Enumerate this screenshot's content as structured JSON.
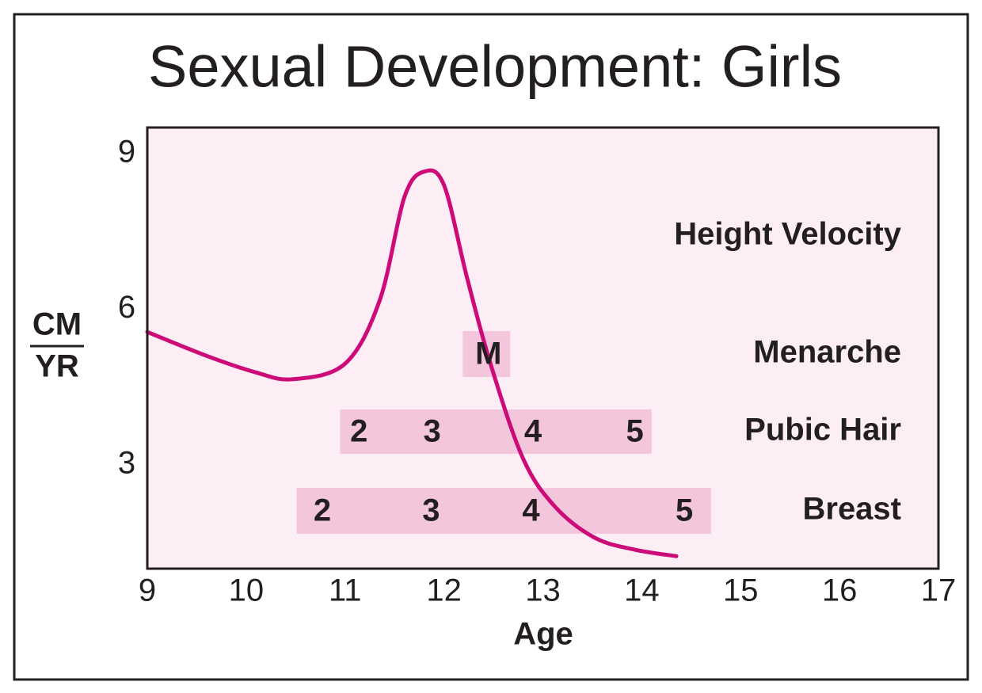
{
  "chart_data": {
    "type": "line",
    "title": "Sexual Development: Girls",
    "xlabel": "Age",
    "ylabel": {
      "numerator": "CM",
      "denominator": "YR"
    },
    "xlim": [
      9,
      17
    ],
    "xticks": [
      9,
      10,
      11,
      12,
      13,
      14,
      15,
      16,
      17
    ],
    "ylim": [
      1,
      9.5
    ],
    "yticks": [
      3,
      6,
      9
    ],
    "grid": false,
    "background": "#fdeef6",
    "series": [
      {
        "name": "Height Velocity",
        "color": "#cc0a78",
        "x": [
          9,
          9.6,
          10.1,
          10.47,
          11.0,
          11.35,
          11.6,
          11.8,
          12.0,
          12.23,
          12.47,
          12.8,
          13.12,
          13.52,
          13.92,
          14.35
        ],
        "values": [
          5.56,
          5.1,
          4.78,
          4.65,
          4.95,
          6.17,
          8.16,
          8.65,
          8.39,
          6.63,
          4.95,
          3.12,
          2.2,
          1.6,
          1.37,
          1.24
        ]
      }
    ],
    "band_color": "#f4c6dc",
    "bands": [
      {
        "name": "Menarche",
        "start": 12.19,
        "end": 12.67,
        "stages": [
          {
            "label": "M",
            "age": 12.45
          }
        ]
      },
      {
        "name": "Pubic Hair",
        "start": 10.95,
        "end": 14.1,
        "stages": [
          {
            "label": "2",
            "age": 11.14
          },
          {
            "label": "3",
            "age": 11.88
          },
          {
            "label": "4",
            "age": 12.9
          },
          {
            "label": "5",
            "age": 13.93
          }
        ]
      },
      {
        "name": "Breast",
        "start": 10.51,
        "end": 14.7,
        "stages": [
          {
            "label": "2",
            "age": 10.77
          },
          {
            "label": "3",
            "age": 11.87
          },
          {
            "label": "4",
            "age": 12.88
          },
          {
            "label": "5",
            "age": 14.43
          }
        ]
      }
    ]
  }
}
